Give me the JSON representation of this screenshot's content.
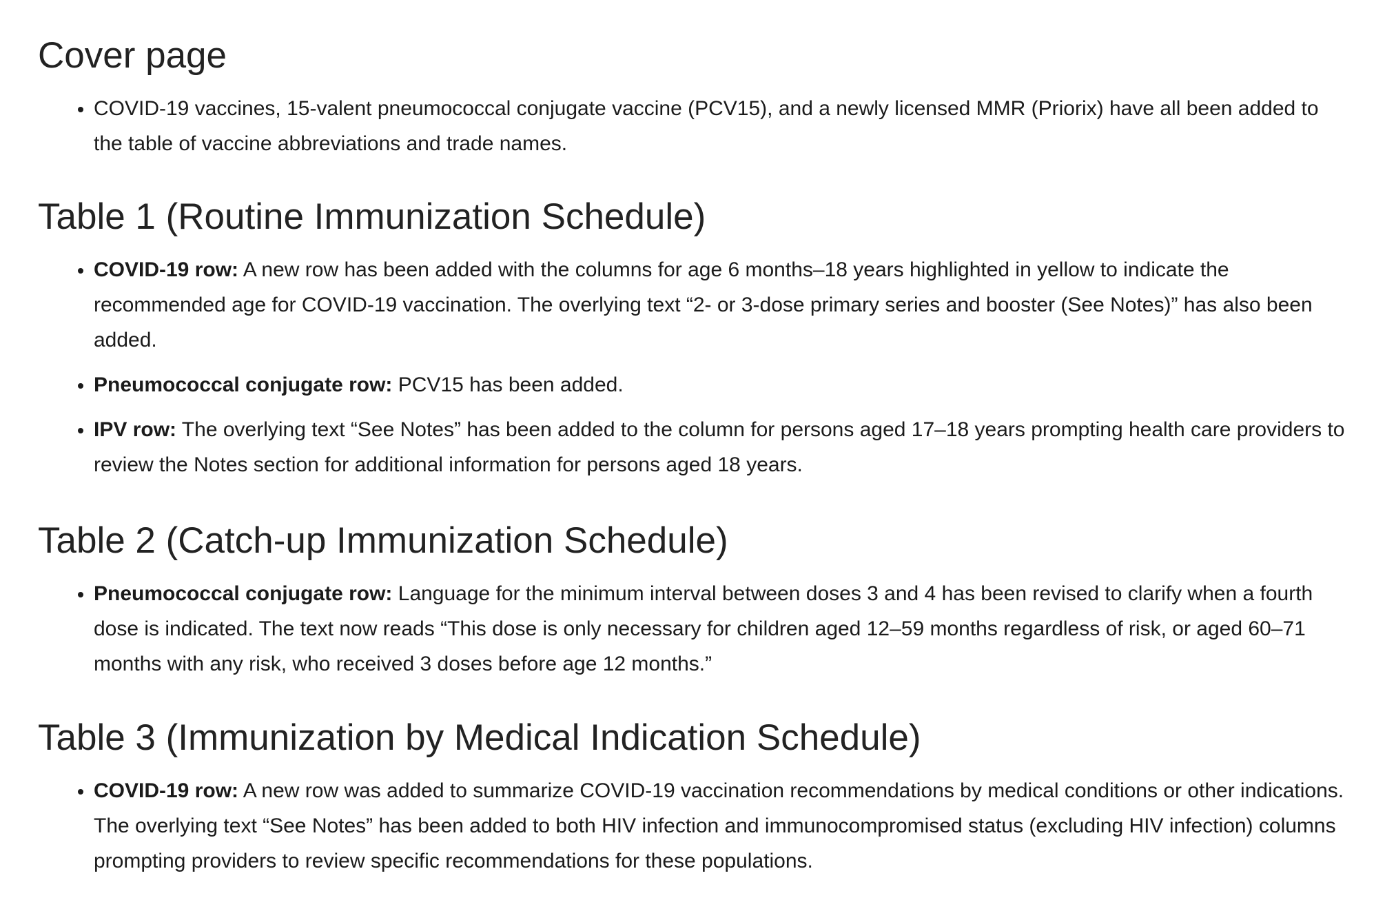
{
  "sections": [
    {
      "heading": "Cover page",
      "items": [
        {
          "bold": "",
          "text": "COVID-19 vaccines, 15-valent pneumococcal conjugate vaccine (PCV15), and a newly licensed MMR (Priorix) have all been added to the table of vaccine abbreviations and trade names."
        }
      ]
    },
    {
      "heading": "Table 1 (Routine Immunization Schedule)",
      "items": [
        {
          "bold": "COVID-19 row:",
          "text": " A new row has been added with the columns for age 6 months–18 years highlighted in yellow to indicate the recommended age for COVID-19 vaccination. The overlying text “2- or 3-dose primary series and booster (See Notes)” has also been added."
        },
        {
          "bold": "Pneumococcal conjugate row:",
          "text": " PCV15 has been added."
        },
        {
          "bold": "IPV row:",
          "text": " The overlying text “See Notes” has been added to the column for persons aged 17–18 years prompting health care providers to review the Notes section for additional information for persons aged 18 years."
        }
      ]
    },
    {
      "heading": "Table 2 (Catch-up Immunization Schedule)",
      "items": [
        {
          "bold": "Pneumococcal conjugate row:",
          "text": " Language for the minimum interval between doses 3 and 4 has been revised to clarify when a fourth dose is indicated. The text now reads “This dose is only necessary for children aged 12–59 months regardless of risk, or aged 60–71 months with any risk, who received 3 doses before age 12 months.”"
        }
      ]
    },
    {
      "heading": "Table 3 (Immunization by Medical Indication Schedule)",
      "items": [
        {
          "bold": "COVID-19 row:",
          "text": " A new row was added to summarize COVID-19 vaccination recommendations by medical conditions or other indications. The overlying text “See Notes” has been added to both HIV infection and immunocompromised status (excluding HIV infection) columns prompting providers to review specific recommendations for these populations."
        }
      ]
    }
  ]
}
